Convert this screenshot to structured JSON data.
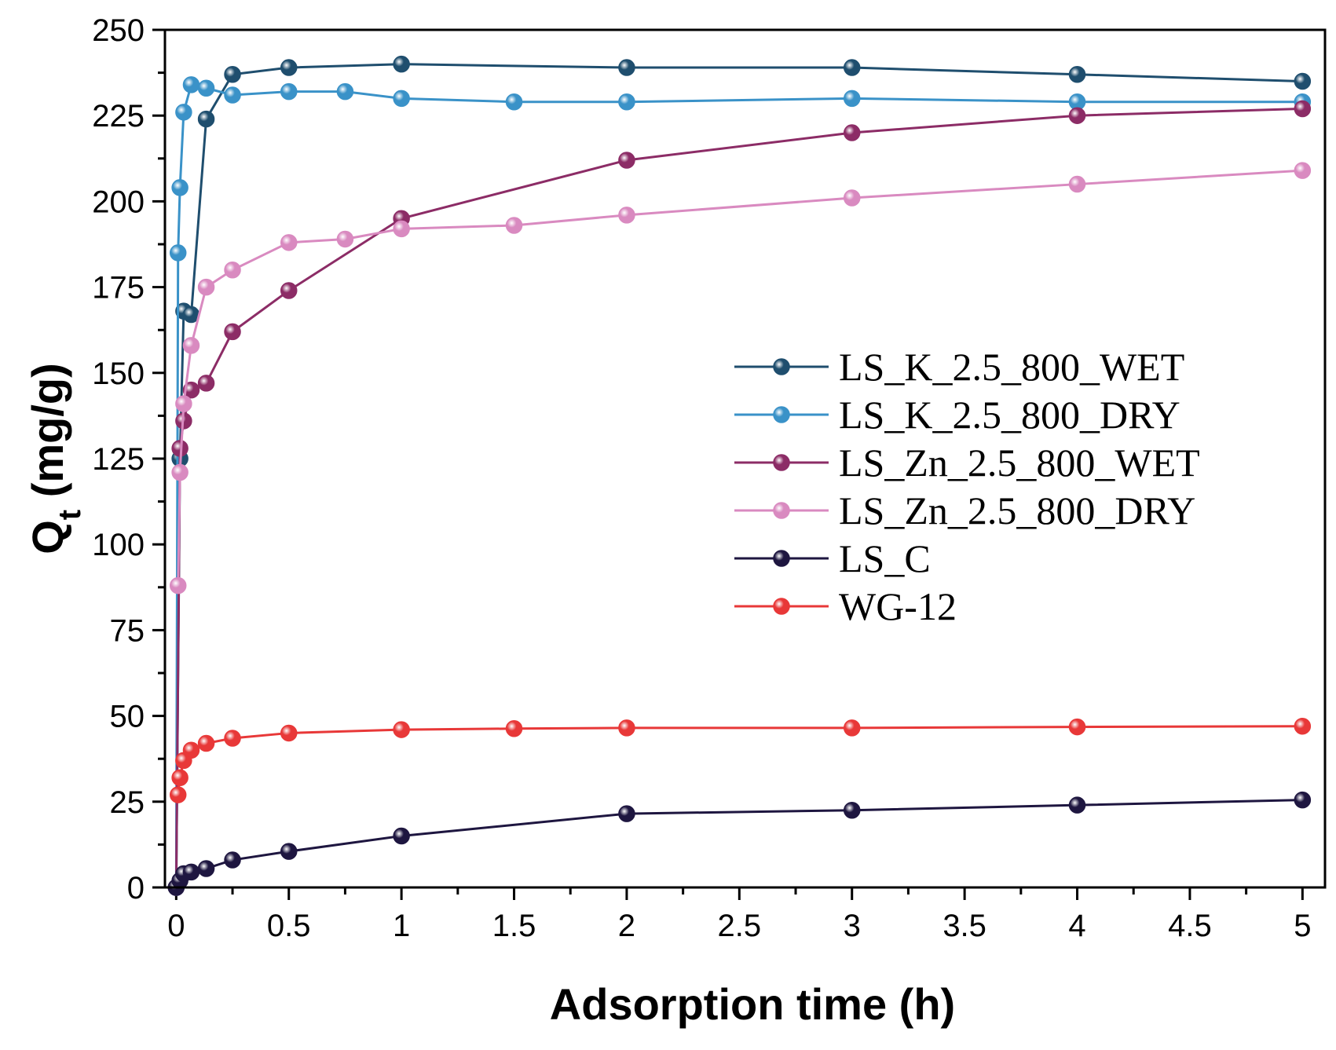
{
  "chart_data": {
    "type": "line",
    "title": "",
    "xlabel": "Adsorption time (h)",
    "ylabel_main": "Q",
    "ylabel_sub": "t",
    "ylabel_unit": " (mg/g)",
    "xlim": [
      -0.05,
      5.1
    ],
    "ylim": [
      0,
      250
    ],
    "xticks": [
      0,
      0.5,
      1,
      1.5,
      2,
      2.5,
      3,
      3.5,
      4,
      4.5,
      5
    ],
    "xtick_labels": [
      "0",
      "0.5",
      "1",
      "1.5",
      "2",
      "2.5",
      "3",
      "3.5",
      "4",
      "4.5",
      "5"
    ],
    "yticks": [
      0,
      25,
      50,
      75,
      100,
      125,
      150,
      175,
      200,
      225,
      250
    ],
    "ytick_labels": [
      "0",
      "25",
      "50",
      "75",
      "100",
      "125",
      "150",
      "175",
      "200",
      "225",
      "250"
    ],
    "grid": false,
    "legend_position": "center-right",
    "series": [
      {
        "name": "LS_K_2.5_800_WET",
        "color": "#1f4e6e",
        "x": [
          0,
          0.0167,
          0.0333,
          0.0667,
          0.1333,
          0.25,
          0.5,
          1,
          2,
          3,
          4,
          5
        ],
        "y": [
          0,
          125,
          168,
          167,
          224,
          237,
          239,
          240,
          239,
          239,
          237,
          235
        ]
      },
      {
        "name": "LS_K_2.5_800_DRY",
        "color": "#3a92c8",
        "x": [
          0,
          0.0083,
          0.0167,
          0.0333,
          0.0667,
          0.1333,
          0.25,
          0.5,
          0.75,
          1,
          1.5,
          2,
          3,
          4,
          5
        ],
        "y": [
          0,
          185,
          204,
          226,
          234,
          233,
          231,
          232,
          232,
          230,
          229,
          229,
          230,
          229,
          229
        ]
      },
      {
        "name": "LS_Zn_2.5_800_WET",
        "color": "#8c2c66",
        "x": [
          0,
          0.0167,
          0.0333,
          0.0667,
          0.1333,
          0.25,
          0.5,
          1,
          2,
          3,
          4,
          5
        ],
        "y": [
          0,
          128,
          136,
          145,
          147,
          162,
          174,
          195,
          212,
          220,
          225,
          227
        ]
      },
      {
        "name": "LS_Zn_2.5_800_DRY",
        "color": "#d98ac0",
        "x": [
          0.0083,
          0.0167,
          0.0333,
          0.0667,
          0.1333,
          0.25,
          0.5,
          0.75,
          1,
          1.5,
          2,
          3,
          4,
          5
        ],
        "y": [
          88,
          121,
          141,
          158,
          175,
          180,
          188,
          189,
          192,
          193,
          196,
          201,
          205,
          209
        ]
      },
      {
        "name": "LS_C",
        "color": "#1e1640",
        "x": [
          0,
          0.0167,
          0.0333,
          0.0667,
          0.1333,
          0.25,
          0.5,
          1,
          2,
          3,
          4,
          5
        ],
        "y": [
          0,
          2,
          4,
          4.5,
          5.5,
          8,
          10.5,
          15,
          21.5,
          22.5,
          24,
          25.5
        ]
      },
      {
        "name": "WG-12",
        "color": "#e83838",
        "x": [
          0.0083,
          0.0167,
          0.0333,
          0.0667,
          0.1333,
          0.25,
          0.5,
          1,
          1.5,
          2,
          3,
          4,
          5
        ],
        "y": [
          27,
          32,
          37,
          40,
          42,
          43.5,
          45,
          46,
          46.3,
          46.5,
          46.5,
          46.8,
          47
        ]
      }
    ]
  }
}
